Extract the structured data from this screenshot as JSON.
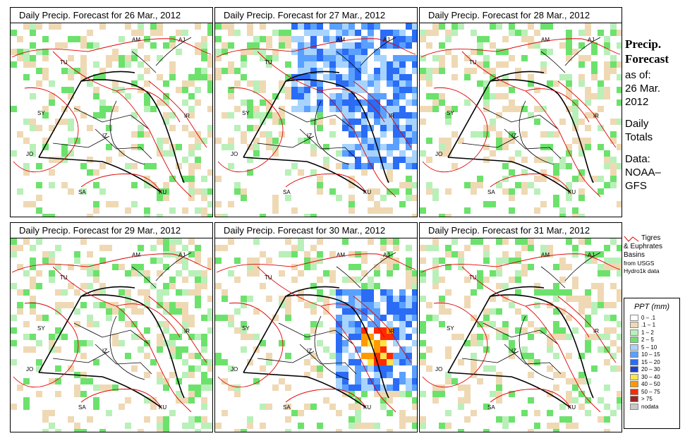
{
  "panels": [
    {
      "title": "Daily Precip. Forecast for  26 Mar., 2012",
      "intensity": "low"
    },
    {
      "title": "Daily Precip. Forecast for  27 Mar., 2012",
      "intensity": "high"
    },
    {
      "title": "Daily Precip. Forecast for  28 Mar., 2012",
      "intensity": "low"
    },
    {
      "title": "Daily Precip. Forecast for  29 Mar., 2012",
      "intensity": "low"
    },
    {
      "title": "Daily Precip. Forecast for  30 Mar., 2012",
      "intensity": "storm"
    },
    {
      "title": "Daily Precip. Forecast for  31 Mar., 2012",
      "intensity": "low"
    }
  ],
  "map_labels": [
    "AM",
    "AJ",
    "TU",
    "SY",
    "IR",
    "JO",
    "SA",
    "KU",
    "IZ"
  ],
  "sidebar": {
    "title_line1": "Precip.",
    "title_line2": "Forecast",
    "asof": "as of:",
    "date_line1": "26 Mar.",
    "date_line2": "2012",
    "daily_line1": "Daily",
    "daily_line2": "Totals",
    "data_line1": "Data:",
    "data_line2": "NOAA–",
    "data_line3": "GFS"
  },
  "basin_note": {
    "line1": "Tigres",
    "line2": "& Euphrates",
    "line3": "Basins",
    "line4": "from USGS",
    "line5": "Hydro1k data",
    "line_color": "#e00000"
  },
  "legend": {
    "title": "PPT (mm)",
    "items": [
      {
        "label": "0 – .1",
        "color": "#ffffff"
      },
      {
        "label": ".1 – 1",
        "color": "#efd9b4"
      },
      {
        "label": "1 – 2",
        "color": "#b9f0b9"
      },
      {
        "label": "2 – 5",
        "color": "#6ce26c"
      },
      {
        "label": "5 – 10",
        "color": "#a7d3ff"
      },
      {
        "label": "10 – 15",
        "color": "#5aa0ff"
      },
      {
        "label": "15 – 20",
        "color": "#2a6cf5"
      },
      {
        "label": "20 – 30",
        "color": "#1f3fd0"
      },
      {
        "label": "30 – 40",
        "color": "#ffe44a"
      },
      {
        "label": "40 – 50",
        "color": "#ff9a00"
      },
      {
        "label": "50 – 75",
        "color": "#ff2a00"
      },
      {
        "label": "> 75",
        "color": "#a0241c"
      },
      {
        "label": "nodata",
        "color": "#c8c8c8"
      }
    ]
  }
}
